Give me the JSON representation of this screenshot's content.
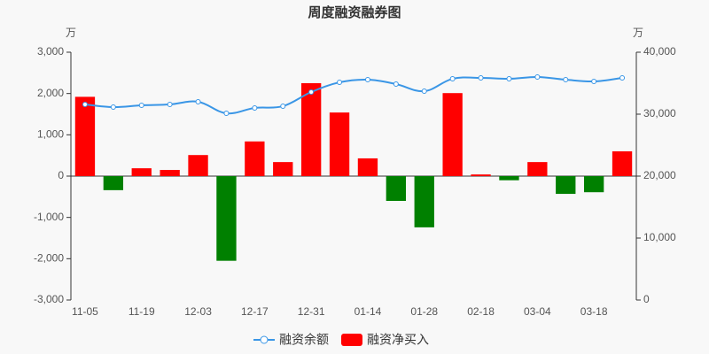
{
  "chart_data": {
    "type": "bar_line",
    "title": "周度融资融券图",
    "y_unit": "万",
    "y2_unit": "万",
    "categories": [
      "11-05",
      null,
      "11-19",
      null,
      "12-03",
      null,
      "12-17",
      null,
      "12-31",
      null,
      "01-14",
      null,
      "01-28",
      null,
      "02-18",
      null,
      "03-04",
      null,
      "03-18",
      null
    ],
    "series": [
      {
        "name": "融资余额",
        "type": "line",
        "axis": "y2",
        "color": "#3a96e6",
        "values": [
          31570,
          31140,
          31430,
          31570,
          32000,
          30140,
          31000,
          31290,
          33570,
          35140,
          35570,
          34860,
          33710,
          35710,
          35860,
          35710,
          36000,
          35570,
          35290,
          35860
        ]
      },
      {
        "name": "融资净买入",
        "type": "bar",
        "axis": "y",
        "color": "#ff0000",
        "negative_color": "#008000",
        "values": [
          1920,
          -340,
          190,
          150,
          510,
          -2050,
          840,
          340,
          2250,
          1540,
          430,
          -600,
          -1240,
          2010,
          40,
          -100,
          340,
          -430,
          -390,
          600
        ]
      }
    ],
    "ylim": [
      -3000,
      3000
    ],
    "yticks": [
      {
        "value": -3000,
        "label": "-3,000"
      },
      {
        "value": -2000,
        "label": "-2,000"
      },
      {
        "value": -1000,
        "label": "-1,000"
      },
      0,
      {
        "value": 1000,
        "label": "1,000"
      },
      {
        "value": 2000,
        "label": "2,000"
      },
      {
        "value": 3000,
        "label": "3,000"
      }
    ],
    "y2lim": [
      0,
      40000
    ],
    "y2ticks": [
      0,
      {
        "value": 10000,
        "label": "10,000"
      },
      {
        "value": 20000,
        "label": "20,000"
      },
      {
        "value": 30000,
        "label": "30,000"
      },
      {
        "value": 40000,
        "label": "40,000"
      }
    ],
    "grid": false,
    "legend": "bottom"
  }
}
